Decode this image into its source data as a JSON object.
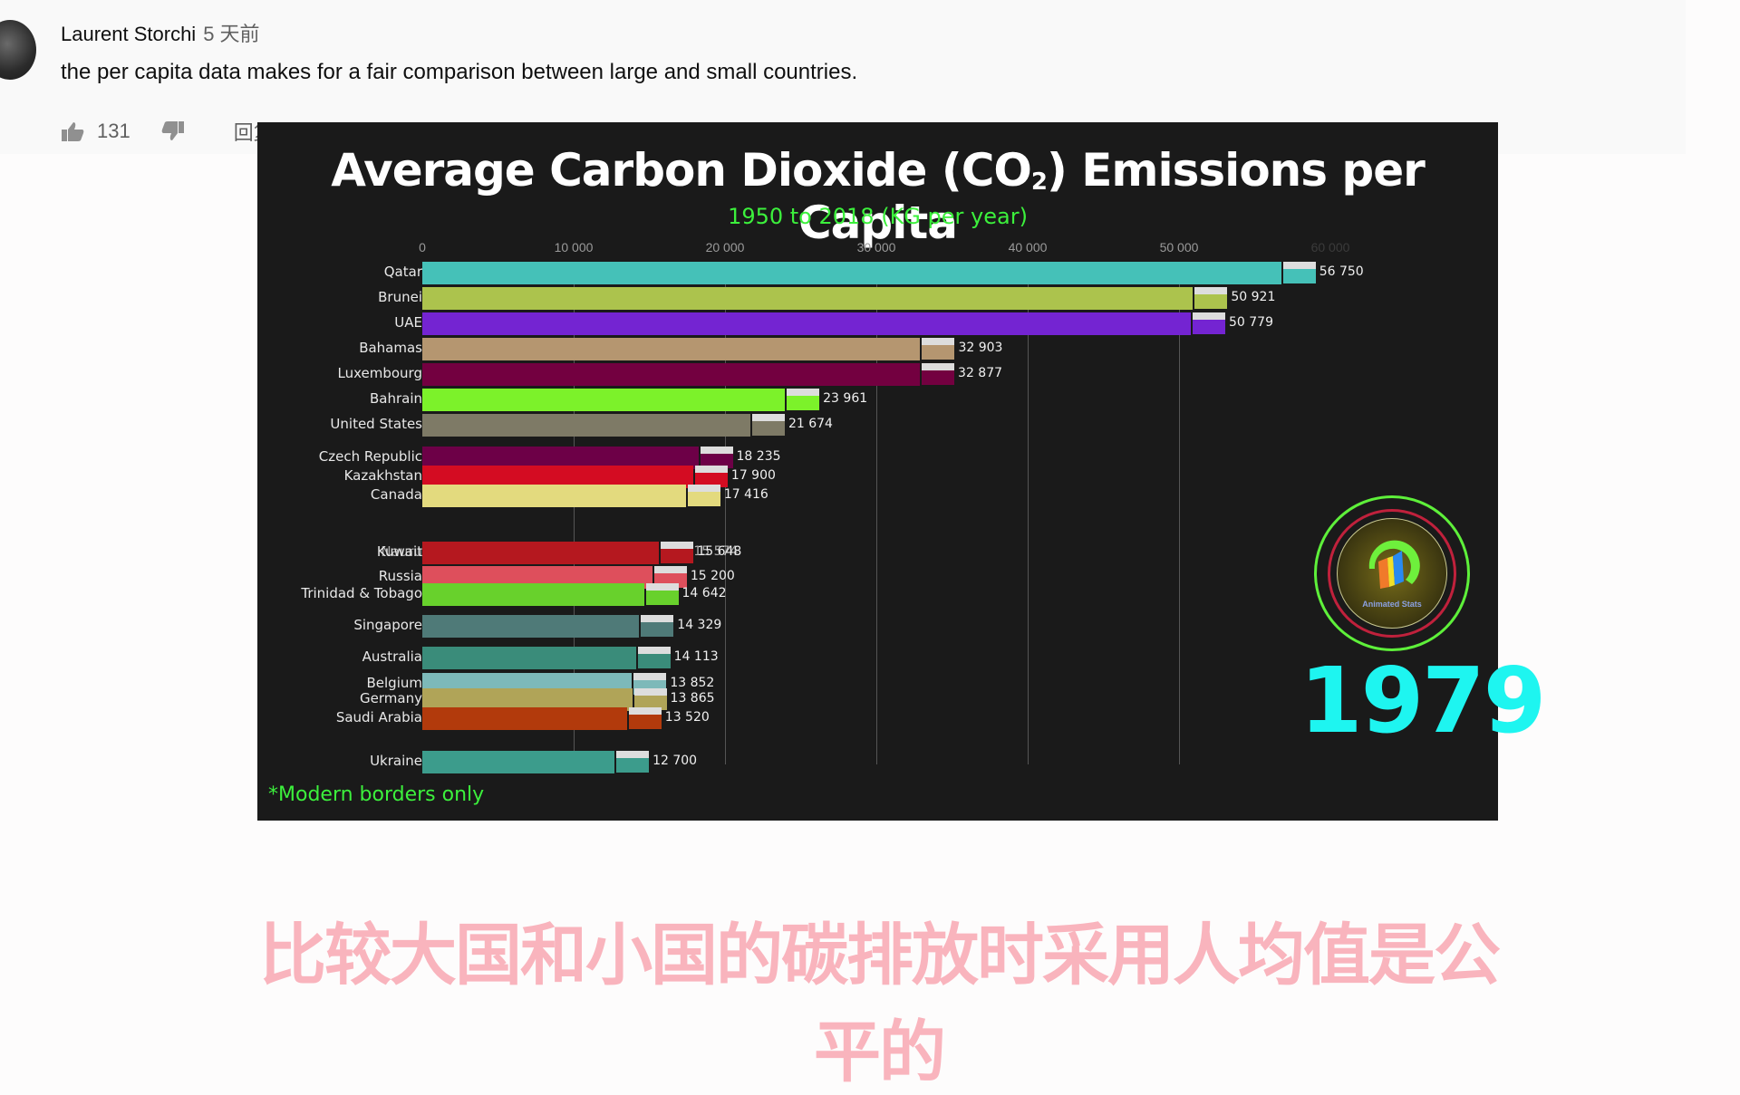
{
  "comment": {
    "author": "Laurent Storchi",
    "time": "5 天前",
    "text": "the per capita data makes for a fair comparison between large and small countries.",
    "likes": "131",
    "reply_label": "回复"
  },
  "video": {
    "title_main": "Average Carbon Dioxide (CO",
    "title_sub": "2",
    "title_end": ") Emissions per Capita",
    "subtitle": "1950 to 2018 (KG per year)",
    "footnote": "*Modern borders only",
    "year": "1979",
    "logo_text": "Animated Stats",
    "caption": "比较大国和小国的碳排放时采用人均值是公平的"
  },
  "chart_data": {
    "type": "bar",
    "orientation": "horizontal",
    "title": "Average Carbon Dioxide (CO₂) Emissions per Capita",
    "subtitle": "1950 to 2018 (KG per year)",
    "year": "1979",
    "xlabel": "",
    "ylabel": "",
    "xlim": [
      0,
      60000
    ],
    "ticks": [
      "0",
      "10 000",
      "20 000",
      "30 000",
      "40 000",
      "50 000",
      "60 000"
    ],
    "tick_values": [
      0,
      10000,
      20000,
      30000,
      40000,
      50000,
      60000
    ],
    "grid": true,
    "categories": [
      "Qatar",
      "Brunei",
      "UAE",
      "Bahamas",
      "Luxembourg",
      "Bahrain",
      "United States",
      "Czech Republic",
      "Kazakhstan",
      "Canada",
      "Kuwait",
      "Russia",
      "Trinidad & Tobago",
      "Singapore",
      "Australia",
      "Belgium",
      "Germany",
      "Saudi Arabia",
      "Ukraine"
    ],
    "values": [
      56750,
      50921,
      50779,
      32903,
      32877,
      23961,
      21674,
      18235,
      17900,
      17416,
      15648,
      15200,
      14642,
      14329,
      14113,
      13852,
      13865,
      13520,
      12700
    ],
    "labels": [
      "56 750",
      "50 921",
      "50 779",
      "32 903",
      "32 877",
      "23 961",
      "21 674",
      "18 235",
      "17 900",
      "17 416",
      "15 648",
      "15 200",
      "14 642",
      "14 329",
      "14 113",
      "13 852",
      "13 865",
      "13 520",
      "12 700"
    ],
    "overlap_row": {
      "label_overlay": "Nauru",
      "value_overlay": "15 574"
    },
    "colors": [
      "#45c1b8",
      "#acc34d",
      "#7424d2",
      "#b59670",
      "#730040",
      "#7cf22a",
      "#7e7a66",
      "#6d0047",
      "#d40c22",
      "#e3da7e",
      "#b5181f",
      "#de4f5c",
      "#68d12c",
      "#4f7a78",
      "#3a8c7a",
      "#7db9b9",
      "#b0a458",
      "#b23a0c",
      "#3c9c8c"
    ],
    "row_y": [
      301,
      329,
      357,
      385,
      413,
      441,
      469,
      505,
      526,
      547,
      610,
      637,
      656,
      691,
      726,
      755,
      772,
      793,
      841
    ]
  }
}
